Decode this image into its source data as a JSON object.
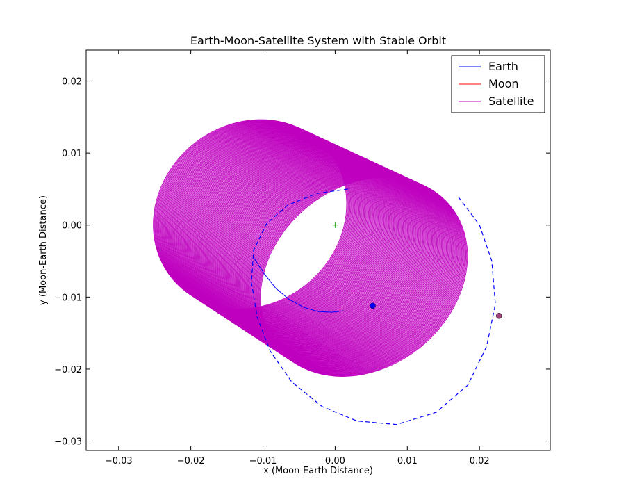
{
  "chart_data": {
    "type": "line",
    "title": "Earth-Moon-Satellite System with Stable Orbit",
    "xlabel": "x (Moon-Earth Distance)",
    "ylabel": "y (Moon-Earth Distance)",
    "xlim": [
      -0.0345,
      0.0298
    ],
    "ylim": [
      -0.0313,
      0.0243
    ],
    "xticks": [
      -0.03,
      -0.02,
      -0.01,
      0.0,
      0.01,
      0.02
    ],
    "xtick_labels": [
      "−0.03",
      "−0.02",
      "−0.01",
      "0.00",
      "0.01",
      "0.02"
    ],
    "yticks": [
      0.02,
      0.01,
      0.0,
      -0.01,
      -0.02,
      -0.03
    ],
    "ytick_labels": [
      "0.02",
      "0.01",
      "0.00",
      "−0.01",
      "−0.02",
      "−0.03"
    ],
    "grid": false,
    "legend_position": "top-right",
    "colors": {
      "earth": "#0000ff",
      "moon": "#ff0000",
      "satellite": "#bf00bf",
      "moon_marker": "#a0427c",
      "center_marker": "#2ca02c"
    },
    "series": [
      {
        "name": "Earth",
        "key": "earth",
        "points": [
          [
            -0.0113,
            -0.0045
          ],
          [
            -0.0098,
            -0.0068
          ],
          [
            -0.0082,
            -0.0088
          ],
          [
            -0.0064,
            -0.0103
          ],
          [
            -0.0044,
            -0.0114
          ],
          [
            -0.0024,
            -0.012
          ],
          [
            -0.0004,
            -0.0121
          ],
          [
            0.0012,
            -0.0119
          ]
        ],
        "end_marker": [
          0.0052,
          -0.0112
        ]
      },
      {
        "name": "Moon",
        "key": "moon",
        "points": [],
        "end_marker": [
          0.0227,
          -0.0126
        ]
      },
      {
        "name": "Satellite",
        "key": "satellite",
        "band": {
          "center_start": [
            0.004,
            -0.0072
          ],
          "center_end": [
            -0.0118,
            0.0015
          ],
          "a_start": 0.0155,
          "a_end": 0.014,
          "b": 0.0125,
          "tilt_deg": 40
        }
      }
    ],
    "extra_paths": [
      {
        "key": "earth-orbit",
        "style": "dashed",
        "color": "#0000ff",
        "points": [
          [
            0.0018,
            0.005
          ],
          [
            -0.0025,
            0.0044
          ],
          [
            -0.0065,
            0.0028
          ],
          [
            -0.0095,
            0.0002
          ],
          [
            -0.0113,
            -0.0035
          ],
          [
            -0.0116,
            -0.008
          ],
          [
            -0.0108,
            -0.0128
          ],
          [
            -0.009,
            -0.0175
          ],
          [
            -0.006,
            -0.0218
          ],
          [
            -0.0018,
            -0.0252
          ],
          [
            0.003,
            -0.0272
          ],
          [
            0.0085,
            -0.0277
          ],
          [
            0.014,
            -0.026
          ],
          [
            0.0184,
            -0.0222
          ],
          [
            0.021,
            -0.0168
          ],
          [
            0.0222,
            -0.011
          ],
          [
            0.0217,
            -0.005
          ],
          [
            0.02,
            0.0
          ],
          [
            0.017,
            0.004
          ]
        ]
      }
    ],
    "center_marker": [
      0.0,
      0.0
    ]
  }
}
